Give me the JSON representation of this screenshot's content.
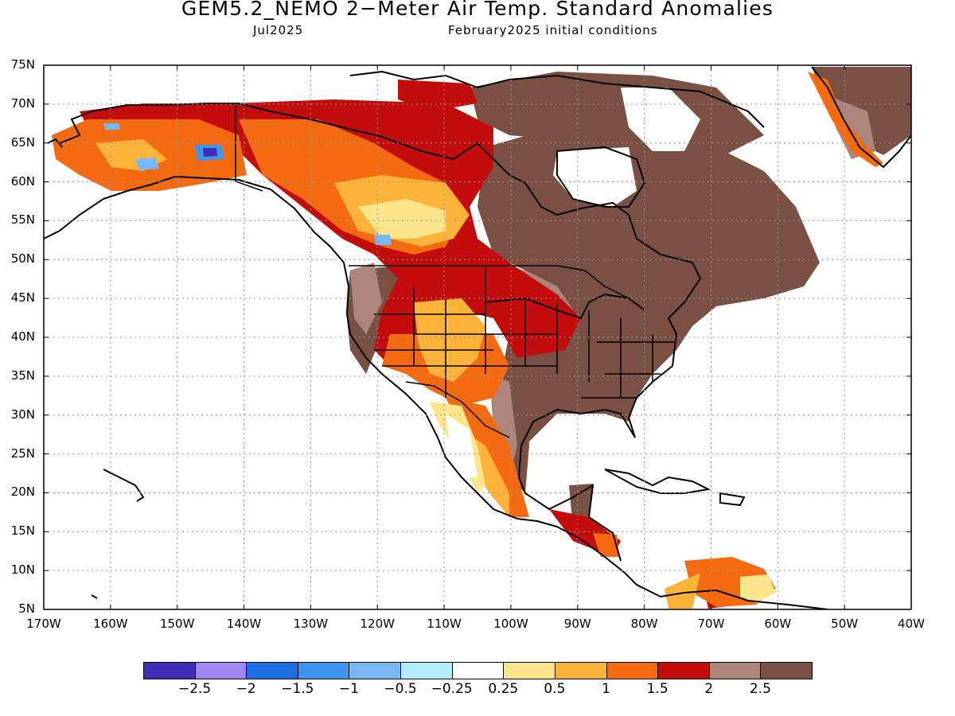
{
  "title": "GEM5.2_NEMO 2−Meter Air Temp. Standard Anomalies",
  "subtitle_month": "Jul2025",
  "subtitle_init": "February2025 initial conditions",
  "map": {
    "lat_range": [
      5,
      75
    ],
    "lon_range": [
      -170,
      -40
    ],
    "lat_ticks": [
      "5N",
      "10N",
      "15N",
      "20N",
      "25N",
      "30N",
      "35N",
      "40N",
      "45N",
      "50N",
      "55N",
      "60N",
      "65N",
      "70N",
      "75N"
    ],
    "lon_ticks": [
      "170W",
      "160W",
      "150W",
      "140W",
      "130W",
      "120W",
      "110W",
      "100W",
      "90W",
      "80W",
      "70W",
      "60W",
      "50W",
      "40W"
    ],
    "gridlines": "dotted"
  },
  "colorbar": {
    "colors": [
      "#3f2db8",
      "#a285f5",
      "#1e6ee6",
      "#3d95ee",
      "#78b8f5",
      "#b3ecfb",
      "#ffffff",
      "#fde58c",
      "#fdb339",
      "#f46a11",
      "#c30d0d",
      "#ae857b",
      "#7a5044"
    ],
    "labels": [
      "−2.5",
      "−2",
      "−1.5",
      "−1",
      "−0.5",
      "−0.25",
      "0.25",
      "0.5",
      "1",
      "1.5",
      "2",
      "2.5"
    ]
  }
}
